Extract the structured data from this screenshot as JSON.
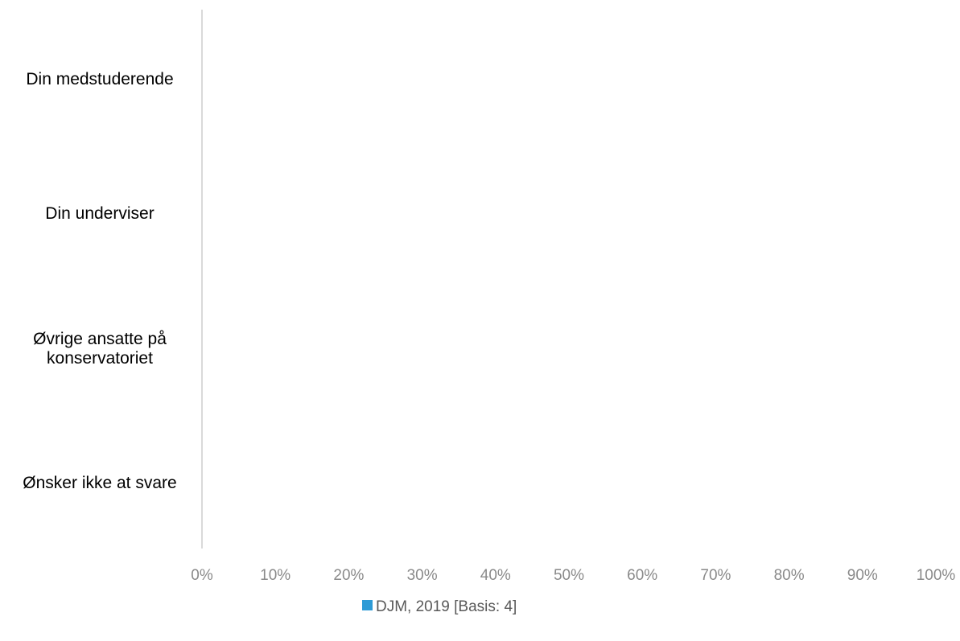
{
  "chart_data": {
    "type": "bar",
    "orientation": "horizontal",
    "categories": [
      [
        "Din medstuderende"
      ],
      [
        "Din underviser"
      ],
      [
        "Øvrige ansatte på",
        "konservatoriet"
      ],
      [
        "Ønsker ikke at svare"
      ]
    ],
    "series": [
      {
        "name": "DJM, 2019 [Basis: 4]",
        "color": "#2e9bd6",
        "values": [
          0,
          0,
          0,
          0
        ]
      }
    ],
    "xticks": [
      "0%",
      "10%",
      "20%",
      "30%",
      "40%",
      "50%",
      "60%",
      "70%",
      "80%",
      "90%",
      "100%"
    ],
    "xlim": [
      0,
      100
    ],
    "grid": false,
    "legend_position": "bottom",
    "axis_color": "#d9d9d9"
  }
}
